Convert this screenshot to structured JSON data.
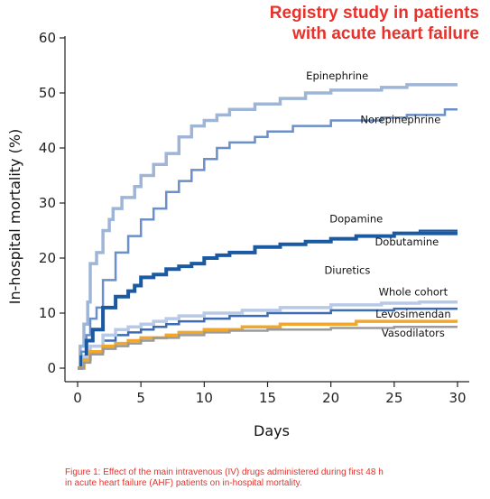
{
  "figure": {
    "title_lines": [
      "Registry study in patients",
      "with acute heart failure"
    ],
    "caption_lines": [
      "Figure 1: Effect of the main intravenous (IV) drugs administered during first 48 h",
      "in acute heart failure (AHF) patients on in-hospital mortality."
    ]
  },
  "chart_data": {
    "type": "line",
    "step": true,
    "xlabel": "Days",
    "ylabel": "In-hospital mortality (%)",
    "xlim": [
      0,
      30
    ],
    "ylim": [
      0,
      60
    ],
    "xticks": [
      0,
      5,
      10,
      15,
      20,
      25,
      30
    ],
    "yticks": [
      0,
      10,
      20,
      30,
      40,
      50,
      60
    ],
    "grid": false,
    "legend": "none (series labelled directly on the lines)",
    "series": [
      {
        "name": "Epinephrine",
        "color": "#9fb5d8",
        "width": 3.5,
        "points": [
          [
            0,
            0
          ],
          [
            0.2,
            4
          ],
          [
            0.5,
            8
          ],
          [
            0.8,
            12
          ],
          [
            1,
            19
          ],
          [
            1.5,
            21
          ],
          [
            2,
            25
          ],
          [
            2.5,
            27
          ],
          [
            2.8,
            29
          ],
          [
            3.5,
            31
          ],
          [
            4.5,
            33
          ],
          [
            5,
            35
          ],
          [
            6,
            37
          ],
          [
            7,
            39
          ],
          [
            8,
            42
          ],
          [
            9,
            44
          ],
          [
            10,
            45
          ],
          [
            11,
            46
          ],
          [
            12,
            47
          ],
          [
            14,
            48
          ],
          [
            16,
            49
          ],
          [
            18,
            50
          ],
          [
            20,
            50.5
          ],
          [
            24,
            51
          ],
          [
            26,
            51.5
          ],
          [
            30,
            51.5
          ]
        ]
      },
      {
        "name": "Norepinephrine",
        "color": "#6a8fc9",
        "width": 2.5,
        "points": [
          [
            0,
            0
          ],
          [
            0.3,
            3
          ],
          [
            0.7,
            6
          ],
          [
            1,
            9
          ],
          [
            1.5,
            11
          ],
          [
            2,
            16
          ],
          [
            3,
            21
          ],
          [
            4,
            24
          ],
          [
            5,
            27
          ],
          [
            6,
            29
          ],
          [
            7,
            32
          ],
          [
            8,
            34
          ],
          [
            9,
            36
          ],
          [
            10,
            38
          ],
          [
            11,
            40
          ],
          [
            12,
            41
          ],
          [
            14,
            42
          ],
          [
            15,
            43
          ],
          [
            17,
            44
          ],
          [
            20,
            45
          ],
          [
            24,
            45.5
          ],
          [
            26,
            46
          ],
          [
            29,
            47
          ],
          [
            30,
            47
          ]
        ]
      },
      {
        "name": "Dopamine",
        "color": "#1a5aa3",
        "width": 4,
        "points": [
          [
            0,
            0
          ],
          [
            0.3,
            2
          ],
          [
            0.7,
            5
          ],
          [
            1.2,
            7
          ],
          [
            2,
            11
          ],
          [
            3,
            13
          ],
          [
            4,
            14
          ],
          [
            4.5,
            15
          ],
          [
            5,
            16.5
          ],
          [
            6,
            17
          ],
          [
            7,
            18
          ],
          [
            8,
            18.5
          ],
          [
            9,
            19
          ],
          [
            10,
            20
          ],
          [
            11,
            20.5
          ],
          [
            12,
            21
          ],
          [
            14,
            22
          ],
          [
            16,
            22.5
          ],
          [
            18,
            23
          ],
          [
            20,
            23.5
          ],
          [
            22,
            24
          ],
          [
            25,
            24.5
          ],
          [
            30,
            24.5
          ]
        ]
      },
      {
        "name": "Dobutamine",
        "color": "#1a5aa3",
        "width": 2,
        "points": [
          [
            0,
            0
          ],
          [
            0.3,
            2
          ],
          [
            0.7,
            5
          ],
          [
            1.2,
            7
          ],
          [
            2,
            11
          ],
          [
            3,
            13
          ],
          [
            4,
            14
          ],
          [
            4.5,
            15
          ],
          [
            5,
            16.5
          ],
          [
            6,
            17
          ],
          [
            7,
            18
          ],
          [
            8,
            18.5
          ],
          [
            9,
            19
          ],
          [
            10,
            20
          ],
          [
            11,
            20.5
          ],
          [
            12,
            21
          ],
          [
            14,
            22
          ],
          [
            16,
            22.5
          ],
          [
            18,
            23
          ],
          [
            20,
            23.5
          ],
          [
            22,
            24
          ],
          [
            25,
            24.5
          ],
          [
            27,
            25
          ],
          [
            30,
            25
          ]
        ]
      },
      {
        "name": "Diuretics",
        "color": "#3d6cb0",
        "width": 2.5,
        "points": [
          [
            0,
            0
          ],
          [
            0.5,
            2
          ],
          [
            1,
            4
          ],
          [
            2,
            5
          ],
          [
            3,
            6
          ],
          [
            4,
            6.5
          ],
          [
            5,
            7
          ],
          [
            6,
            7.5
          ],
          [
            7,
            8
          ],
          [
            8,
            8.5
          ],
          [
            10,
            9
          ],
          [
            12,
            9.5
          ],
          [
            15,
            10
          ],
          [
            20,
            10.5
          ],
          [
            25,
            10.8
          ],
          [
            30,
            10.8
          ]
        ]
      },
      {
        "name": "Whole cohort",
        "color": "#b8c9e8",
        "width": 3.5,
        "points": [
          [
            0,
            0
          ],
          [
            0.5,
            2
          ],
          [
            1,
            4
          ],
          [
            2,
            6
          ],
          [
            3,
            7
          ],
          [
            4,
            7.5
          ],
          [
            5,
            8
          ],
          [
            6,
            8.5
          ],
          [
            7,
            9
          ],
          [
            8,
            9.5
          ],
          [
            10,
            10
          ],
          [
            13,
            10.5
          ],
          [
            16,
            11
          ],
          [
            20,
            11.5
          ],
          [
            24,
            11.8
          ],
          [
            27,
            12
          ],
          [
            30,
            12
          ]
        ]
      },
      {
        "name": "Levosimendan",
        "color": "#f0a72b",
        "width": 3.5,
        "points": [
          [
            0,
            0
          ],
          [
            0.5,
            1.5
          ],
          [
            1,
            3
          ],
          [
            2,
            4
          ],
          [
            3,
            4.5
          ],
          [
            4,
            5
          ],
          [
            5,
            5.5
          ],
          [
            7,
            6
          ],
          [
            8,
            6.5
          ],
          [
            10,
            7
          ],
          [
            13,
            7.5
          ],
          [
            15,
            7.5
          ],
          [
            16,
            8
          ],
          [
            21,
            8
          ],
          [
            22,
            8.5
          ],
          [
            30,
            8.5
          ]
        ]
      },
      {
        "name": "Vasodilators",
        "color": "#9a9a9a",
        "width": 2.5,
        "points": [
          [
            0,
            0
          ],
          [
            0.5,
            1
          ],
          [
            1,
            2.5
          ],
          [
            2,
            3.5
          ],
          [
            3,
            4
          ],
          [
            4,
            4.5
          ],
          [
            5,
            5
          ],
          [
            6,
            5.5
          ],
          [
            8,
            6
          ],
          [
            10,
            6.5
          ],
          [
            12,
            6.8
          ],
          [
            15,
            7
          ],
          [
            20,
            7.3
          ],
          [
            25,
            7.5
          ],
          [
            30,
            7.5
          ]
        ]
      }
    ],
    "annotations": [
      {
        "text": "Epinephrine",
        "x": 20.5,
        "y": 52.5,
        "anchor": "middle"
      },
      {
        "text": "Norepinephrine",
        "x": 25.5,
        "y": 44.5,
        "anchor": "middle"
      },
      {
        "text": "Dopamine",
        "x": 22,
        "y": 26.5,
        "anchor": "middle"
      },
      {
        "text": "Dobutamine",
        "x": 26,
        "y": 22.3,
        "anchor": "middle"
      },
      {
        "text": "Diuretics",
        "x": 21.3,
        "y": 17.1,
        "anchor": "middle"
      },
      {
        "text": "Whole cohort",
        "x": 26.5,
        "y": 13.2,
        "anchor": "middle"
      },
      {
        "text": "Levosimendan",
        "x": 26.5,
        "y": 9.2,
        "anchor": "middle"
      },
      {
        "text": "Vasodilators",
        "x": 26.5,
        "y": 5.7,
        "anchor": "middle"
      }
    ]
  }
}
